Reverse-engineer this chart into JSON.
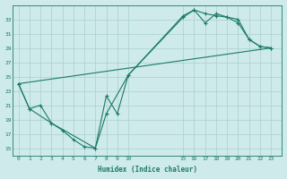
{
  "bg_color": "#ceeaea",
  "grid_color": "#aacfcf",
  "line_color": "#1a7a6a",
  "xlabel": "Humidex (Indice chaleur)",
  "yticks": [
    15,
    17,
    19,
    21,
    23,
    25,
    27,
    29,
    31,
    33
  ],
  "xtick_labels": [
    "0",
    "1",
    "2",
    "3",
    "4",
    "5",
    "6",
    "7",
    "8",
    "9",
    "10",
    "15",
    "16",
    "17",
    "18",
    "19",
    "20",
    "21",
    "22",
    "23"
  ],
  "xtick_pos": [
    0,
    1,
    2,
    3,
    4,
    5,
    6,
    7,
    8,
    9,
    10,
    15,
    16,
    17,
    18,
    19,
    20,
    21,
    22,
    23
  ],
  "xlim": [
    -0.5,
    24.0
  ],
  "ylim": [
    14.0,
    35.0
  ],
  "line1_x": [
    0,
    1,
    3,
    4,
    5,
    6,
    7,
    8,
    9,
    10,
    15,
    16,
    17,
    18,
    19,
    20,
    21,
    22,
    23
  ],
  "line1_y": [
    24,
    20.5,
    18.5,
    17.5,
    16.2,
    15.2,
    15.0,
    22.3,
    19.8,
    25.2,
    33.5,
    34.3,
    33.8,
    33.5,
    33.3,
    32.5,
    30.2,
    29.2,
    29.0
  ],
  "line2_x": [
    0,
    1,
    2,
    3,
    7,
    8,
    10,
    15,
    16,
    17,
    18,
    19,
    20,
    21,
    22,
    23
  ],
  "line2_y": [
    24,
    20.5,
    21.0,
    18.5,
    15.0,
    19.8,
    25.2,
    33.3,
    34.3,
    32.5,
    33.8,
    33.3,
    33.0,
    30.2,
    29.2,
    29.0
  ],
  "line3_x": [
    0,
    23
  ],
  "line3_y": [
    24,
    29.0
  ]
}
